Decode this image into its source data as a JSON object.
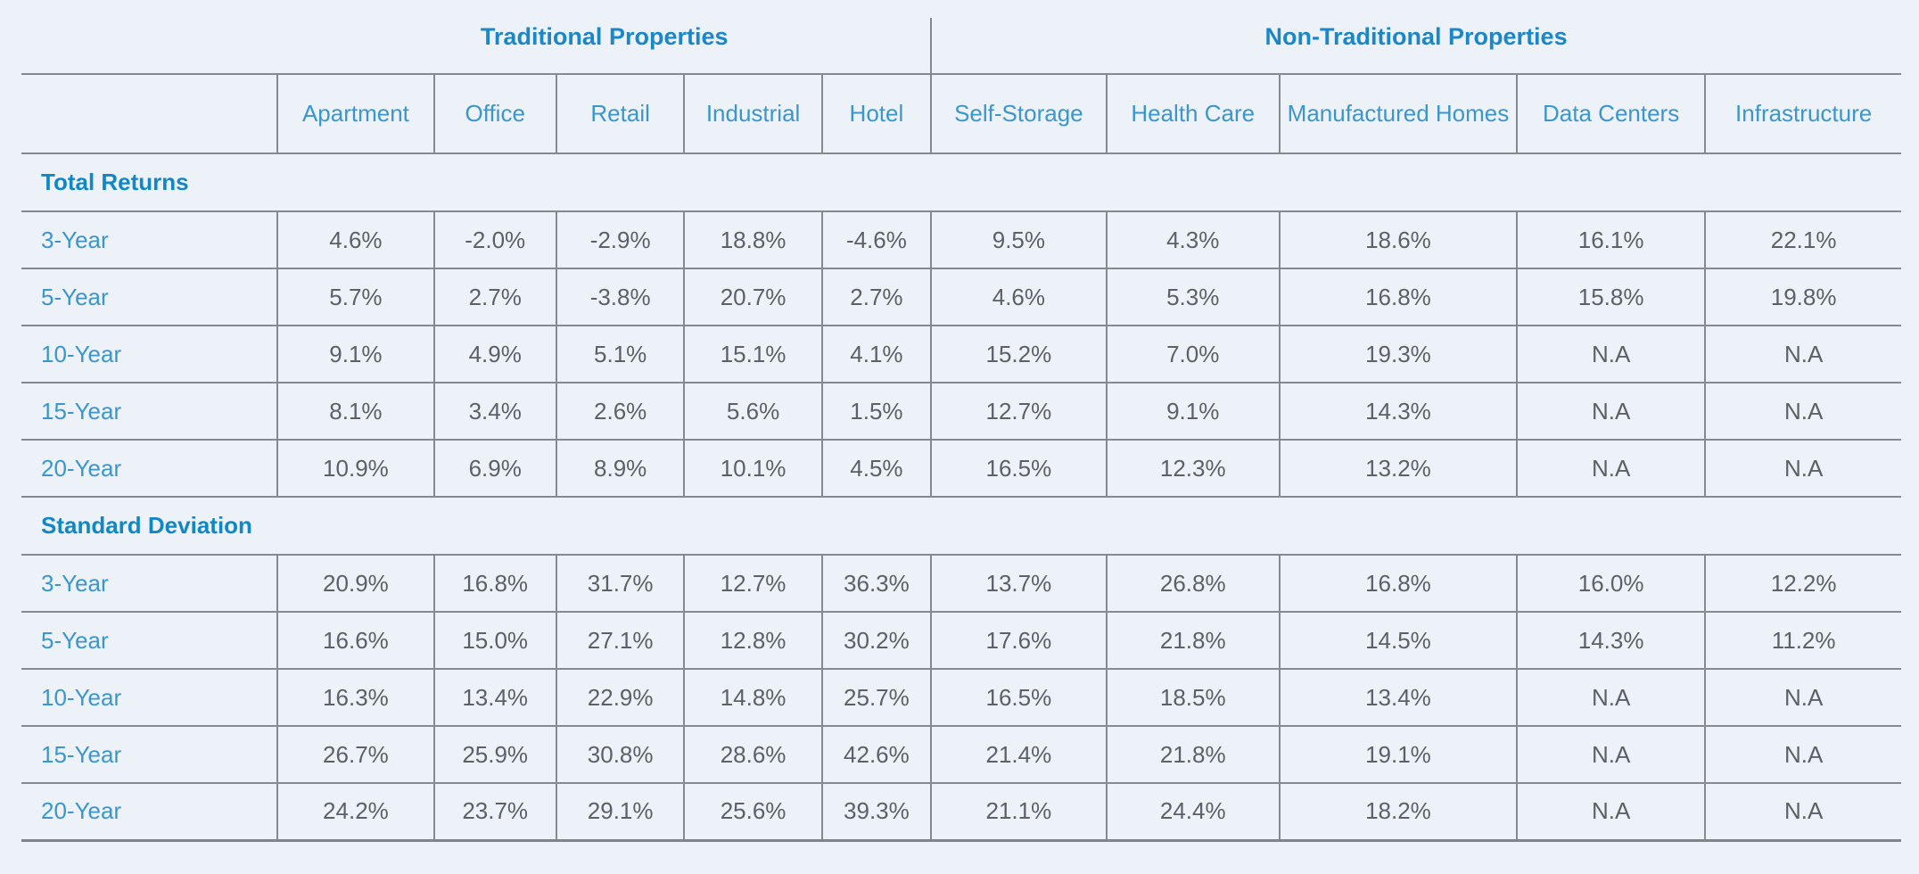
{
  "colors": {
    "background": "#edf1f8",
    "header_blue": "#1b87c7",
    "label_blue": "#3b96cc",
    "value_gray": "#5b6167",
    "border_gray": "#848994"
  },
  "chart_data": {
    "type": "table",
    "group_headers": [
      {
        "label": "Traditional Properties",
        "colspan": 5
      },
      {
        "label": "Non-Traditional Properties",
        "colspan": 5
      }
    ],
    "columns": [
      "Apartment",
      "Office",
      "Retail",
      "Industrial",
      "Hotel",
      "Self-Storage",
      "Health Care",
      "Manufactured Homes",
      "Data Centers",
      "Infrastructure"
    ],
    "sections": [
      {
        "title": "Total Returns",
        "rows": [
          {
            "label": "3-Year",
            "values": [
              "4.6%",
              "-2.0%",
              "-2.9%",
              "18.8%",
              "-4.6%",
              "9.5%",
              "4.3%",
              "18.6%",
              "16.1%",
              "22.1%"
            ]
          },
          {
            "label": "5-Year",
            "values": [
              "5.7%",
              "2.7%",
              "-3.8%",
              "20.7%",
              "2.7%",
              "4.6%",
              "5.3%",
              "16.8%",
              "15.8%",
              "19.8%"
            ]
          },
          {
            "label": "10-Year",
            "values": [
              "9.1%",
              "4.9%",
              "5.1%",
              "15.1%",
              "4.1%",
              "15.2%",
              "7.0%",
              "19.3%",
              "N.A",
              "N.A"
            ]
          },
          {
            "label": "15-Year",
            "values": [
              "8.1%",
              "3.4%",
              "2.6%",
              "5.6%",
              "1.5%",
              "12.7%",
              "9.1%",
              "14.3%",
              "N.A",
              "N.A"
            ]
          },
          {
            "label": "20-Year",
            "values": [
              "10.9%",
              "6.9%",
              "8.9%",
              "10.1%",
              "4.5%",
              "16.5%",
              "12.3%",
              "13.2%",
              "N.A",
              "N.A"
            ]
          }
        ]
      },
      {
        "title": "Standard Deviation",
        "rows": [
          {
            "label": "3-Year",
            "values": [
              "20.9%",
              "16.8%",
              "31.7%",
              "12.7%",
              "36.3%",
              "13.7%",
              "26.8%",
              "16.8%",
              "16.0%",
              "12.2%"
            ]
          },
          {
            "label": "5-Year",
            "values": [
              "16.6%",
              "15.0%",
              "27.1%",
              "12.8%",
              "30.2%",
              "17.6%",
              "21.8%",
              "14.5%",
              "14.3%",
              "11.2%"
            ]
          },
          {
            "label": "10-Year",
            "values": [
              "16.3%",
              "13.4%",
              "22.9%",
              "14.8%",
              "25.7%",
              "16.5%",
              "18.5%",
              "13.4%",
              "N.A",
              "N.A"
            ]
          },
          {
            "label": "15-Year",
            "values": [
              "26.7%",
              "25.9%",
              "30.8%",
              "28.6%",
              "42.6%",
              "21.4%",
              "21.8%",
              "19.1%",
              "N.A",
              "N.A"
            ]
          },
          {
            "label": "20-Year",
            "values": [
              "24.2%",
              "23.7%",
              "29.1%",
              "25.6%",
              "39.3%",
              "21.1%",
              "24.4%",
              "18.2%",
              "N.A",
              "N.A"
            ]
          }
        ]
      }
    ]
  }
}
